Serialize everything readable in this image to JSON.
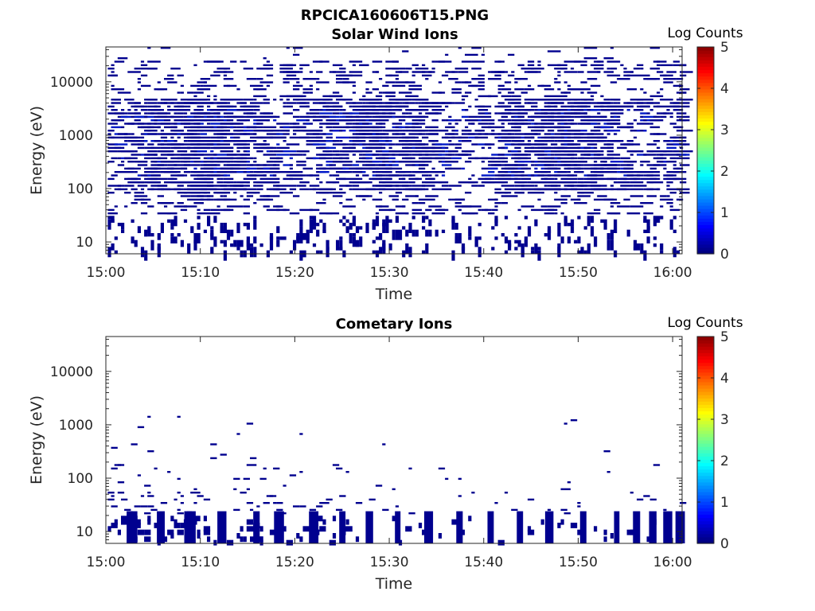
{
  "figure": {
    "title": "RPCICA160606T15.PNG"
  },
  "chart_data": [
    {
      "type": "heatmap",
      "title": "Solar Wind Ions",
      "xlabel": "Time",
      "ylabel": "Energy (eV)",
      "x_ticks": [
        "15:00",
        "15:10",
        "15:20",
        "15:30",
        "15:40",
        "15:50",
        "16:00"
      ],
      "y_ticks": [
        "10",
        "100",
        "1000",
        "10000"
      ],
      "y_scale": "log",
      "ylim": [
        6,
        45000
      ],
      "xlim_minutes": [
        0,
        61
      ],
      "colorbar": {
        "title": "Log Counts",
        "ticks": [
          "0",
          "1",
          "2",
          "3",
          "4",
          "5"
        ],
        "range": [
          0,
          5
        ],
        "colormap": "jet"
      },
      "density": {
        "low_e": 0.25,
        "mid_e": 0.55,
        "high_e": 0.18
      },
      "seed": 11
    },
    {
      "type": "heatmap",
      "title": "Cometary Ions",
      "xlabel": "Time",
      "ylabel": "Energy (eV)",
      "x_ticks": [
        "15:00",
        "15:10",
        "15:20",
        "15:30",
        "15:40",
        "15:50",
        "16:00"
      ],
      "y_ticks": [
        "10",
        "100",
        "1000",
        "10000"
      ],
      "y_scale": "log",
      "ylim": [
        6,
        45000
      ],
      "xlim_minutes": [
        0,
        61
      ],
      "colorbar": {
        "title": "Log Counts",
        "ticks": [
          "0",
          "1",
          "2",
          "3",
          "4",
          "5"
        ],
        "range": [
          0,
          5
        ],
        "colormap": "jet"
      },
      "columns_minutes": [
        2.2,
        2.6,
        5.4,
        8.3,
        8.6,
        11.8,
        15.6,
        17.8,
        18.2,
        21.5,
        24.7,
        27.5,
        30.6,
        33.7,
        37.1,
        40.4,
        43.5,
        46.5,
        50.2,
        53.8,
        55.8,
        57.5,
        59.0,
        60.3
      ],
      "seed": 23
    }
  ]
}
